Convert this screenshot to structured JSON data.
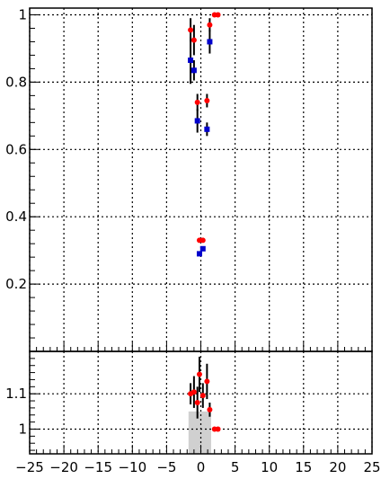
{
  "chart_data": [
    {
      "type": "scatter",
      "panel": "top",
      "xlim": [
        -25,
        25
      ],
      "ylim": [
        0,
        1.02
      ],
      "y_ticks": [
        "0.2",
        "0.4",
        "0.6",
        "0.8",
        "1"
      ],
      "grid": true,
      "series": [
        {
          "color": "#ff0000",
          "marker": "circle",
          "points": [
            {
              "x": -1.5,
              "y": 0.955,
              "err": 0.035
            },
            {
              "x": -1.0,
              "y": 0.925,
              "err": 0.045
            },
            {
              "x": 1.3,
              "y": 0.97,
              "err": 0.02
            },
            {
              "x": 2.0,
              "y": 1.0,
              "err": 0.0
            },
            {
              "x": 2.5,
              "y": 1.0,
              "err": 0.0
            },
            {
              "x": -0.5,
              "y": 0.74,
              "err": 0.025
            },
            {
              "x": 0.9,
              "y": 0.745,
              "err": 0.02
            },
            {
              "x": -0.2,
              "y": 0.33,
              "err": 0.0
            },
            {
              "x": 0.3,
              "y": 0.33,
              "err": 0.0
            }
          ]
        },
        {
          "color": "#0000cc",
          "marker": "square",
          "points": [
            {
              "x": -1.5,
              "y": 0.865,
              "err": 0.07
            },
            {
              "x": -1.0,
              "y": 0.835,
              "err": 0.03
            },
            {
              "x": 1.3,
              "y": 0.92,
              "err": 0.035
            },
            {
              "x": -0.5,
              "y": 0.685,
              "err": 0.035
            },
            {
              "x": 0.9,
              "y": 0.66,
              "err": 0.02
            },
            {
              "x": -0.2,
              "y": 0.29,
              "err": 0.0
            },
            {
              "x": 0.3,
              "y": 0.305,
              "err": 0.0
            }
          ]
        }
      ]
    },
    {
      "type": "scatter",
      "panel": "bottom-ratio",
      "xlim": [
        -25,
        25
      ],
      "ylim": [
        0.93,
        1.22
      ],
      "x_ticks": [
        "−25",
        "−20",
        "−15",
        "−10",
        "−5",
        "0",
        "5",
        "10",
        "15",
        "20",
        "25"
      ],
      "y_ticks": [
        "1",
        "1.1"
      ],
      "grid": true,
      "band": {
        "color": "#d0d0d0",
        "x": [
          -1.8,
          1.5
        ],
        "y": [
          0.93,
          1.05
        ]
      },
      "series": [
        {
          "color": "#ff0000",
          "marker": "circle",
          "points": [
            {
              "x": -1.5,
              "y": 1.1,
              "err": 0.03
            },
            {
              "x": -1.0,
              "y": 1.105,
              "err": 0.045
            },
            {
              "x": -0.5,
              "y": 1.075,
              "err": 0.045
            },
            {
              "x": -0.2,
              "y": 1.155,
              "err": 0.05
            },
            {
              "x": 0.3,
              "y": 1.095,
              "err": 0.035
            },
            {
              "x": 0.9,
              "y": 1.135,
              "err": 0.05
            },
            {
              "x": 1.3,
              "y": 1.055,
              "err": 0.02
            },
            {
              "x": 2.0,
              "y": 1.0,
              "err": 0.0
            },
            {
              "x": 2.5,
              "y": 1.0,
              "err": 0.0
            }
          ]
        }
      ]
    }
  ]
}
